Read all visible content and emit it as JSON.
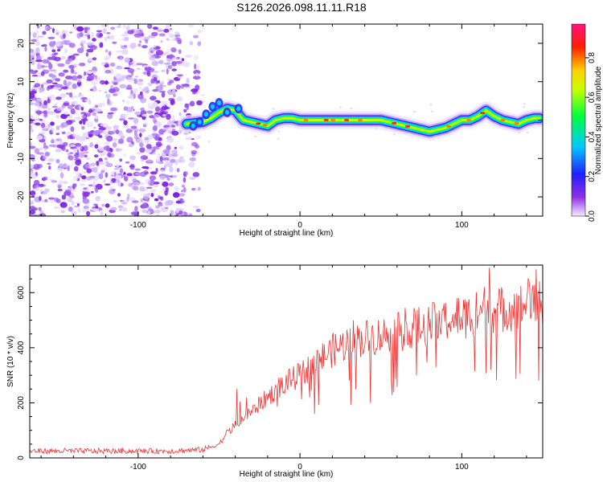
{
  "title": "S126.2026.098.11.11.R18",
  "chart_data": [
    {
      "type": "heatmap",
      "name": "spectrogram",
      "xlabel": "Height of straight line (km)",
      "ylabel": "Frequency (Hz)",
      "xlim": [
        -167,
        150
      ],
      "ylim": [
        -25,
        25
      ],
      "xticks": [
        -100,
        0,
        100
      ],
      "yticks": [
        -20,
        -10,
        0,
        10,
        20
      ],
      "noise_region_x": [
        -167,
        -65
      ],
      "ridge": {
        "x": [
          -70,
          -60,
          -55,
          -50,
          -45,
          -40,
          -35,
          -30,
          -25,
          -20,
          -15,
          -10,
          -5,
          0,
          10,
          20,
          30,
          40,
          50,
          55,
          60,
          65,
          70,
          75,
          80,
          85,
          90,
          95,
          100,
          105,
          110,
          115,
          120,
          125,
          130,
          135,
          140,
          145,
          148
        ],
        "y": [
          -1,
          -0.5,
          0.5,
          2,
          3,
          2.5,
          0,
          -0.5,
          -1,
          -1.5,
          0,
          0.5,
          0.5,
          0,
          0,
          0,
          0,
          0,
          0,
          -0.5,
          -1,
          -1.5,
          -2,
          -2.5,
          -3,
          -2.5,
          -2,
          -1,
          0,
          0,
          1,
          2.5,
          1,
          0,
          -0.5,
          -1,
          0,
          0.5,
          0.5
        ]
      },
      "colorbar": {
        "label": "Normalized spectral amplitude",
        "ticks": [
          0.0,
          0.2,
          0.4,
          0.6,
          0.8
        ],
        "tick_labels": [
          "0.0",
          "0.2",
          "0.4",
          "0.6",
          "0.8"
        ],
        "range": [
          0,
          0.97
        ],
        "colors": [
          "#f0e8ff",
          "#8e2ee6",
          "#2020ff",
          "#00c8ff",
          "#00ff40",
          "#c8ff00",
          "#ffd000",
          "#ff2000",
          "#ff1080"
        ]
      }
    },
    {
      "type": "line",
      "name": "snr",
      "xlabel": "Height of straight line (km)",
      "ylabel": "SNR (10 * v/v)",
      "xlim": [
        -167,
        150
      ],
      "ylim": [
        0,
        700
      ],
      "xticks": [
        -100,
        0,
        100
      ],
      "yticks": [
        0,
        200,
        400,
        600
      ],
      "color": "#ee3333",
      "trend": {
        "x": [
          -167,
          -120,
          -80,
          -60,
          -50,
          -45,
          -40,
          -30,
          -20,
          -10,
          0,
          10,
          20,
          30,
          40,
          50,
          60,
          70,
          80,
          90,
          100,
          110,
          120,
          130,
          140,
          150
        ],
        "y": [
          25,
          25,
          25,
          30,
          50,
          90,
          120,
          170,
          220,
          270,
          300,
          350,
          390,
          420,
          435,
          445,
          455,
          470,
          485,
          500,
          510,
          525,
          535,
          545,
          555,
          560
        ]
      },
      "spikes": [
        {
          "x": -39,
          "y": 250
        },
        {
          "x": -37,
          "y": 205
        },
        {
          "x": -33,
          "y": 220
        },
        {
          "x": -28,
          "y": 190
        },
        {
          "x": -10,
          "y": 240
        },
        {
          "x": 33,
          "y": 500
        },
        {
          "x": 56,
          "y": 470
        },
        {
          "x": 65,
          "y": 545
        },
        {
          "x": 72,
          "y": 300
        },
        {
          "x": 76,
          "y": 460
        },
        {
          "x": 84,
          "y": 330
        },
        {
          "x": 88,
          "y": 540
        },
        {
          "x": 97,
          "y": 580
        },
        {
          "x": 108,
          "y": 315
        },
        {
          "x": 114,
          "y": 620
        },
        {
          "x": 117,
          "y": 690
        },
        {
          "x": 122,
          "y": 560
        },
        {
          "x": 136,
          "y": 305
        },
        {
          "x": 141,
          "y": 650
        },
        {
          "x": 146,
          "y": 685
        }
      ]
    }
  ]
}
